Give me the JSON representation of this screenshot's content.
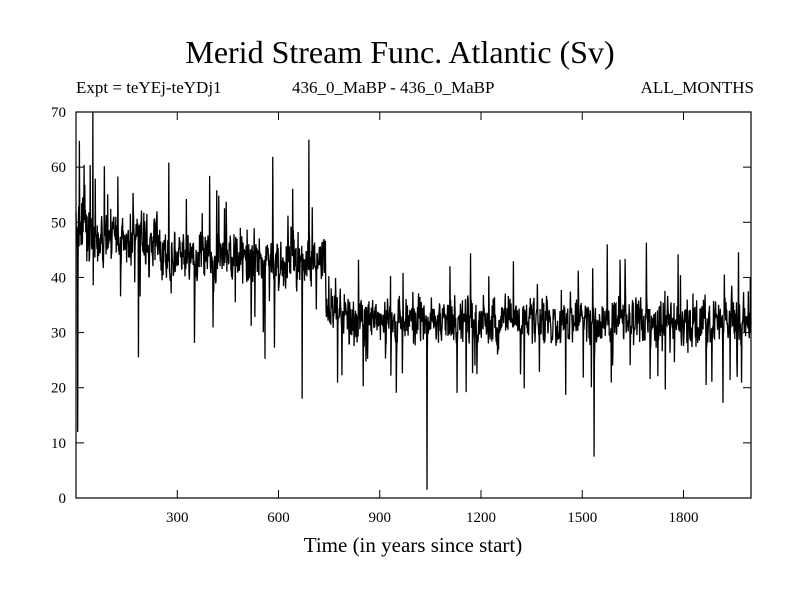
{
  "chart_data": {
    "type": "line",
    "title": "Merid Stream Func. Atlantic (Sv)",
    "subtitle_left": "Expt = teYEj-teYDj1",
    "subtitle_center": "436_0_MaBP - 436_0_MaBP",
    "subtitle_right": "ALL_MONTHS",
    "xlabel": "Time (in years since start)",
    "ylabel": "",
    "xlim": [
      0,
      2000
    ],
    "ylim": [
      0,
      70
    ],
    "xticks": [
      300,
      600,
      900,
      1200,
      1500,
      1800
    ],
    "yticks": [
      0,
      10,
      20,
      30,
      40,
      50,
      60,
      70
    ],
    "grid": false,
    "series": [
      {
        "color": "#000000",
        "segments": [
          {
            "x_start": 0,
            "x_end": 50,
            "mean": 48,
            "amplitude": 12
          },
          {
            "x_start": 50,
            "x_end": 250,
            "mean": 47,
            "amplitude": 10
          },
          {
            "x_start": 250,
            "x_end": 500,
            "mean": 44,
            "amplitude": 9
          },
          {
            "x_start": 500,
            "x_end": 740,
            "mean": 43,
            "amplitude": 10
          },
          {
            "x_start": 740,
            "x_end": 800,
            "mean": 34,
            "amplitude": 7
          },
          {
            "x_start": 800,
            "x_end": 2000,
            "mean": 32,
            "amplitude": 8
          }
        ],
        "extremes": [
          {
            "x": 5,
            "y": 12
          },
          {
            "x": 50,
            "y": 70
          },
          {
            "x": 185,
            "y": 25.5
          },
          {
            "x": 670,
            "y": 18
          },
          {
            "x": 690,
            "y": 65
          },
          {
            "x": 1040,
            "y": 1.5
          },
          {
            "x": 1535,
            "y": 7.5
          }
        ]
      }
    ]
  }
}
